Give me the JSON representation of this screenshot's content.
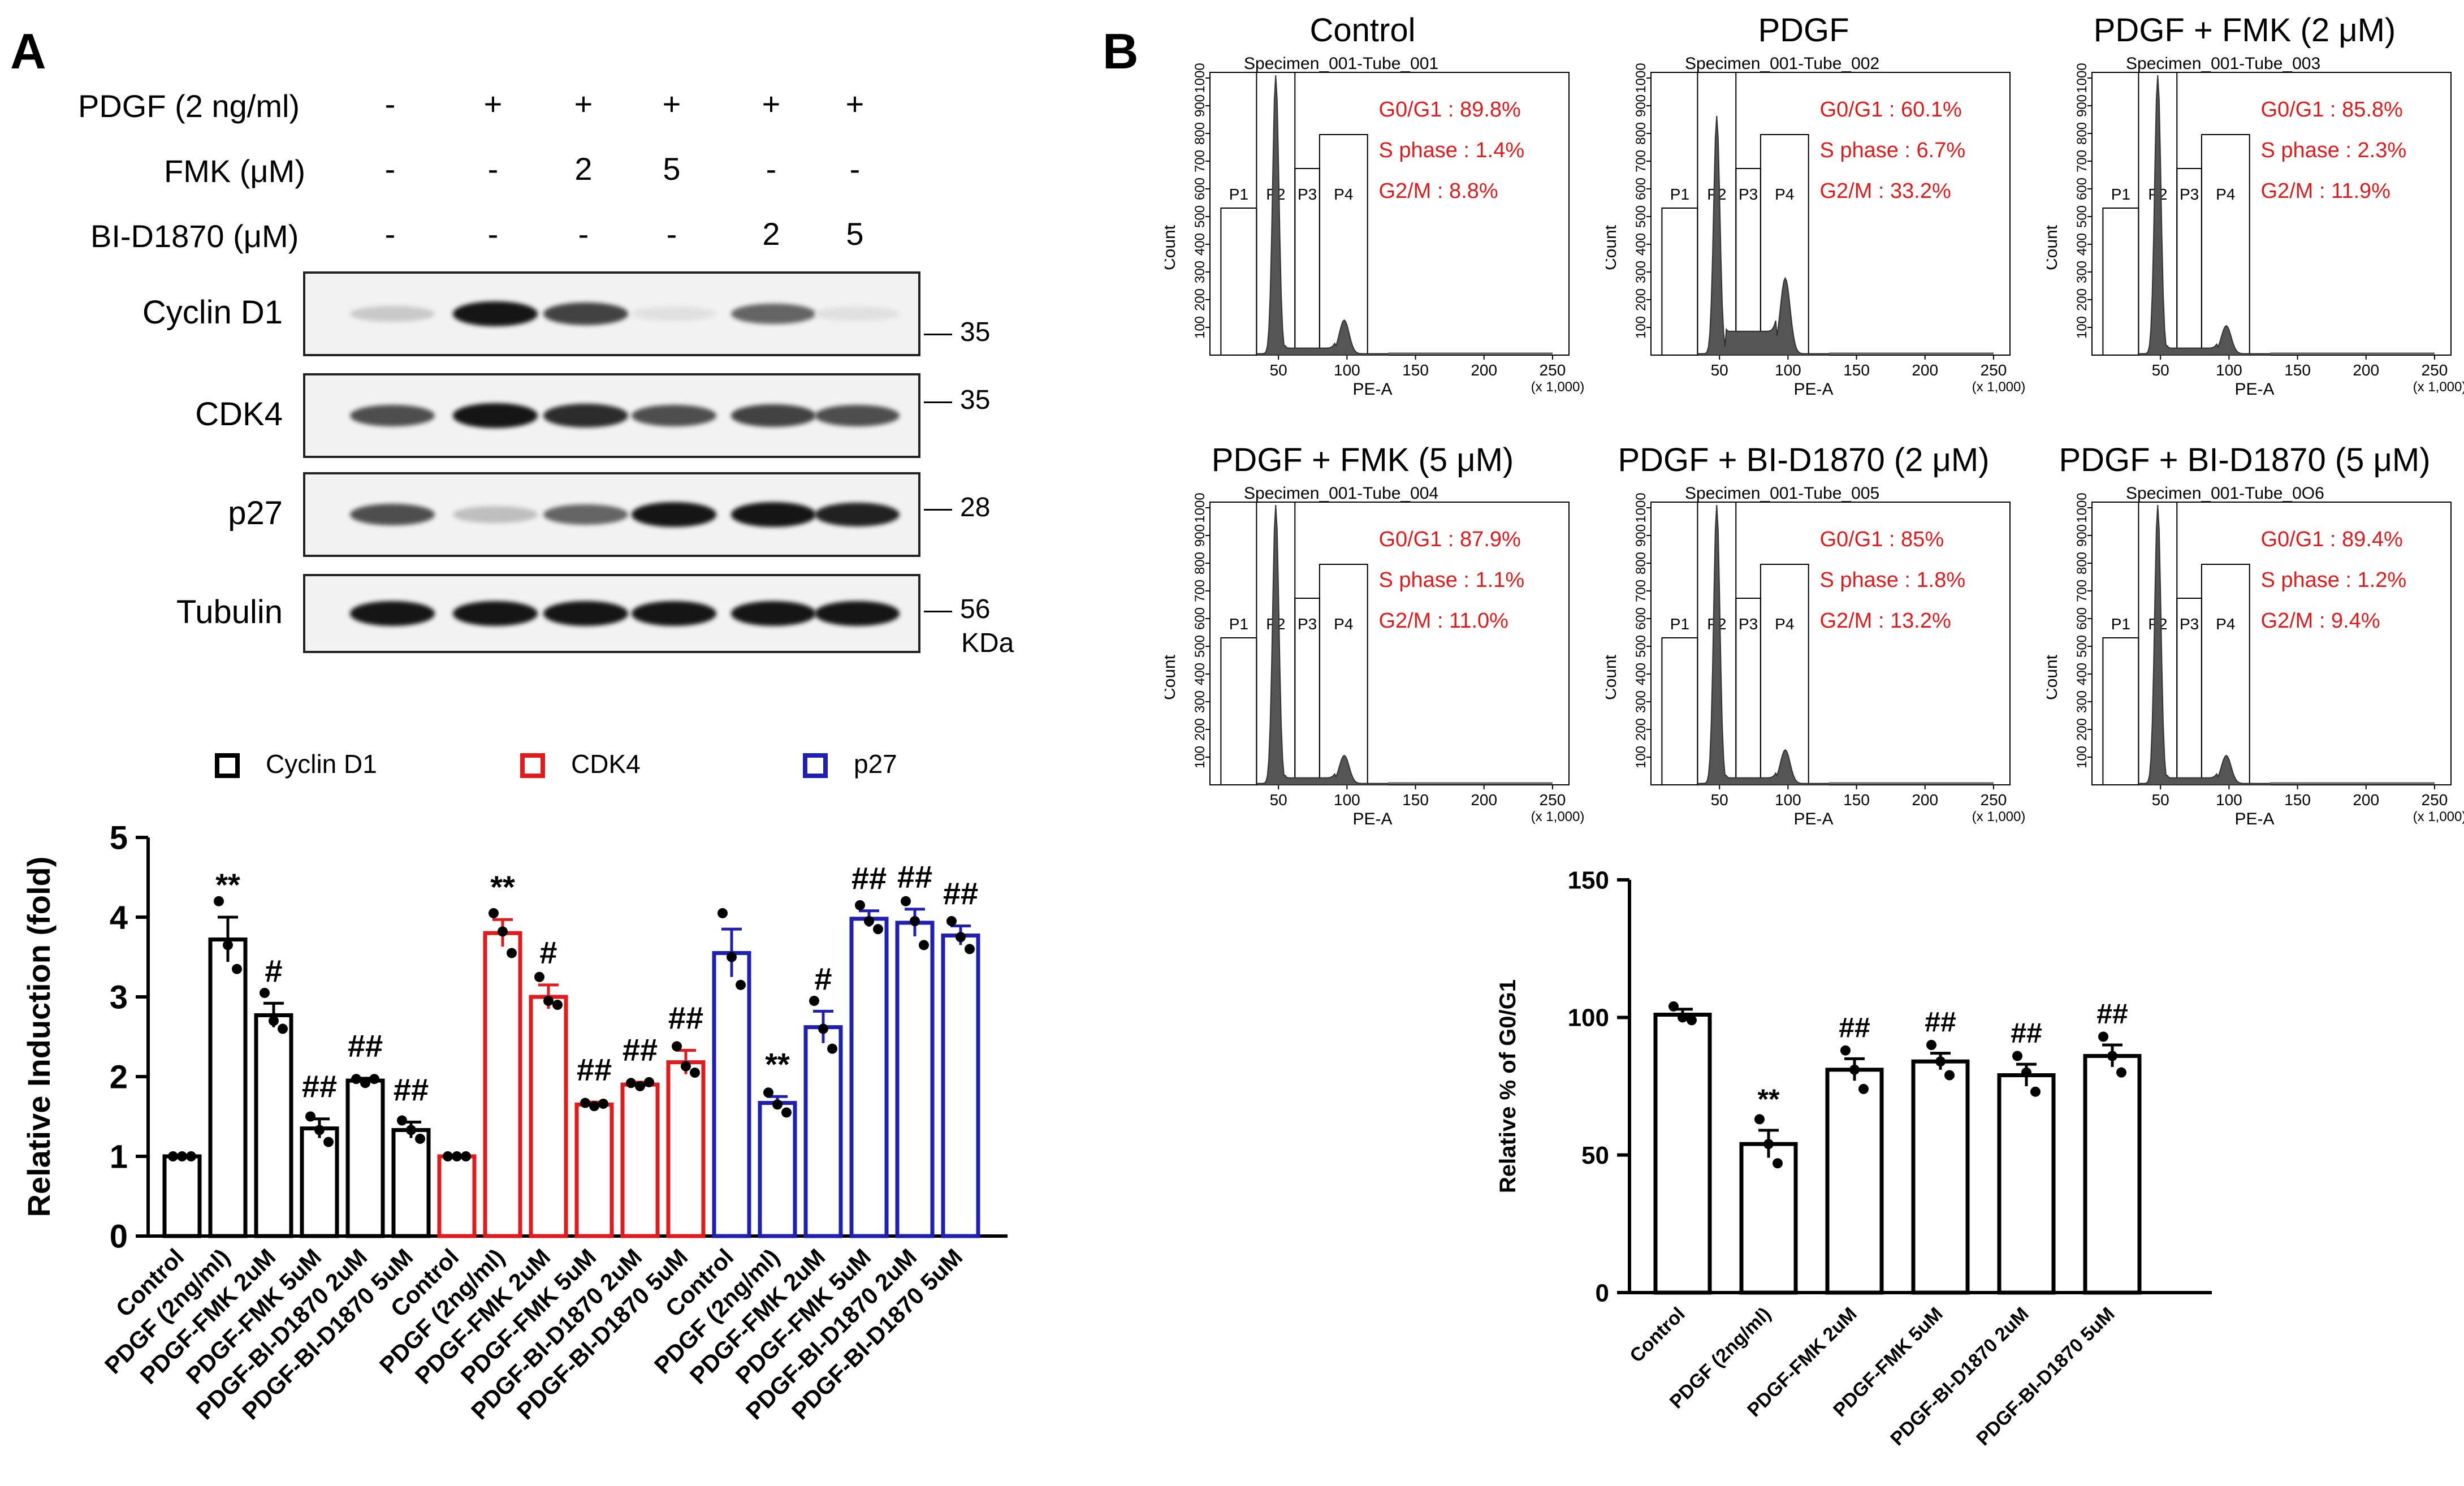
{
  "panel_a": {
    "letter": "A",
    "treatments": [
      {
        "label": "PDGF (2 ng/ml)",
        "values": [
          "-",
          "+",
          "+",
          "+",
          "+",
          "+"
        ]
      },
      {
        "label": "FMK (μM)",
        "values": [
          "-",
          "-",
          "2",
          "5",
          "-",
          "-"
        ]
      },
      {
        "label": "BI-D1870 (μM)",
        "values": [
          "-",
          "-",
          "-",
          "-",
          "2",
          "5"
        ]
      }
    ],
    "blots": [
      {
        "label": "Cyclin D1",
        "intensity": [
          0.15,
          0.95,
          0.75,
          0.05,
          0.6,
          0.05
        ],
        "mw": "35"
      },
      {
        "label": "CDK4",
        "intensity": [
          0.7,
          0.95,
          0.85,
          0.7,
          0.75,
          0.7
        ],
        "mw": "35"
      },
      {
        "label": "p27",
        "intensity": [
          0.7,
          0.2,
          0.6,
          0.95,
          0.95,
          0.9
        ],
        "mw": "28"
      },
      {
        "label": "Tubulin",
        "intensity": [
          0.95,
          0.95,
          0.95,
          0.95,
          0.95,
          0.95
        ],
        "mw": "56"
      }
    ],
    "kda_label": "KDa",
    "legend": [
      {
        "label": "Cyclin D1",
        "color": "#000000"
      },
      {
        "label": "CDK4",
        "color": "#e31a1c"
      },
      {
        "label": "p27",
        "color": "#1f1fb4"
      }
    ]
  },
  "panel_b": {
    "letter": "B",
    "histograms": [
      {
        "title": "Control",
        "specimen": "Specimen_001-Tube_001",
        "g0g1": "G0/G1 : 89.8%",
        "s": "S phase : 1.4%",
        "g2m": "G2/M : 8.8%",
        "g1_height": 1.0,
        "g2_height": 0.12,
        "s_level": 0.02
      },
      {
        "title": "PDGF",
        "specimen": "Specimen_001-Tube_002",
        "g0g1": "G0/G1 : 60.1%",
        "s": "S phase : 6.7%",
        "g2m": "G2/M : 33.2%",
        "g1_height": 0.85,
        "g2_height": 0.27,
        "s_level": 0.08
      },
      {
        "title": "PDGF + FMK (2 μM)",
        "specimen": "Specimen_001-Tube_003",
        "g0g1": "G0/G1 : 85.8%",
        "s": "S phase : 2.3%",
        "g2m": "G2/M : 11.9%",
        "g1_height": 1.0,
        "g2_height": 0.1,
        "s_level": 0.02
      },
      {
        "title": "PDGF + FMK (5 μM)",
        "specimen": "Specimen_001-Tube_004",
        "g0g1": "G0/G1 : 87.9%",
        "s": "S phase : 1.1%",
        "g2m": "G2/M : 11.0%",
        "g1_height": 1.0,
        "g2_height": 0.1,
        "s_level": 0.02
      },
      {
        "title": "PDGF + BI-D1870 (2 μM)",
        "specimen": "Specimen_001-Tube_005",
        "g0g1": "G0/G1 : 85%",
        "s": "S phase : 1.8%",
        "g2m": "G2/M : 13.2%",
        "g1_height": 1.0,
        "g2_height": 0.12,
        "s_level": 0.02
      },
      {
        "title": "PDGF + BI-D1870 (5 μM)",
        "specimen": "Specimen_001-Tube_0O6",
        "g0g1": "G0/G1 : 89.4%",
        "s": "S phase : 1.2%",
        "g2m": "G2/M : 9.4%",
        "g1_height": 1.0,
        "g2_height": 0.1,
        "s_level": 0.02
      }
    ],
    "hist_axis": {
      "xlabel": "PE-A",
      "ylabel": "Count",
      "xticks": [
        "50",
        "100",
        "150",
        "200",
        "250"
      ],
      "xunit": "(x 1,000)",
      "yticks": [
        "100",
        "200",
        "300",
        "400",
        "500",
        "600",
        "700",
        "800",
        "900",
        "1000"
      ],
      "gates": [
        "P1",
        "P2",
        "P3",
        "P4"
      ]
    }
  },
  "chart_data": [
    {
      "type": "bar",
      "title": "",
      "xlabel": "",
      "ylabel": "Relative Induction (fold)",
      "ylim": [
        0,
        5
      ],
      "yticks": [
        0,
        1,
        2,
        3,
        4,
        5
      ],
      "categories": [
        "Control",
        "PDGF (2ng/ml)",
        "PDGF-FMK 2uM",
        "PDGF-FMK 5uM",
        "PDGF-BI-D1870 2uM",
        "PDGF-BI-D1870 5uM"
      ],
      "series": [
        {
          "name": "Cyclin D1",
          "color": "#000000",
          "values": [
            1.0,
            3.72,
            2.77,
            1.35,
            1.95,
            1.33
          ],
          "errors": [
            0.0,
            0.28,
            0.15,
            0.12,
            0.03,
            0.1
          ],
          "points": [
            [
              1.0,
              1.0,
              1.0
            ],
            [
              4.2,
              3.65,
              3.35
            ],
            [
              3.05,
              2.7,
              2.6
            ],
            [
              1.5,
              1.33,
              1.18
            ],
            [
              1.97,
              1.92,
              1.97
            ],
            [
              1.45,
              1.33,
              1.22
            ]
          ],
          "annotations": [
            "",
            "**",
            "#",
            "##",
            "##",
            "##"
          ]
        },
        {
          "name": "CDK4",
          "color": "#e31a1c",
          "values": [
            1.0,
            3.8,
            3.0,
            1.65,
            1.9,
            2.18
          ],
          "errors": [
            0.0,
            0.17,
            0.15,
            0.03,
            0.03,
            0.15
          ],
          "points": [
            [
              1.0,
              1.0,
              1.0
            ],
            [
              4.05,
              3.82,
              3.55
            ],
            [
              3.25,
              2.95,
              2.9
            ],
            [
              1.67,
              1.63,
              1.66
            ],
            [
              1.92,
              1.88,
              1.93
            ],
            [
              2.38,
              2.13,
              2.05
            ]
          ],
          "annotations": [
            "",
            "**",
            "#",
            "##",
            "##",
            "##"
          ]
        },
        {
          "name": "p27",
          "color": "#1f1fb4",
          "values": [
            3.55,
            1.67,
            2.62,
            3.98,
            3.93,
            3.77
          ],
          "errors": [
            0.3,
            0.08,
            0.2,
            0.1,
            0.17,
            0.12
          ],
          "points": [
            [
              4.05,
              3.5,
              3.15
            ],
            [
              1.8,
              1.65,
              1.55
            ],
            [
              2.95,
              2.6,
              2.35
            ],
            [
              4.15,
              3.95,
              3.85
            ],
            [
              4.2,
              3.95,
              3.65
            ],
            [
              3.95,
              3.75,
              3.6
            ]
          ],
          "annotations": [
            "",
            "**",
            "#",
            "##",
            "##",
            "##"
          ]
        }
      ]
    },
    {
      "type": "bar",
      "title": "",
      "xlabel": "",
      "ylabel": "Relative % of G0/G1",
      "ylim": [
        0,
        150
      ],
      "yticks": [
        0,
        50,
        100,
        150
      ],
      "categories": [
        "Control",
        "PDGF (2ng/ml)",
        "PDGF-FMK 2uM",
        "PDGF-FMK 5uM",
        "PDGF-BI-D1870 2uM",
        "PDGF-BI-D1870 5uM"
      ],
      "series": [
        {
          "name": "Relative % of G0/G1",
          "color": "#000000",
          "values": [
            101,
            54,
            81,
            84,
            79,
            86
          ],
          "errors": [
            2,
            5,
            4,
            3,
            4,
            4
          ],
          "points": [
            [
              104,
              100,
              99
            ],
            [
              63,
              54,
              47
            ],
            [
              88,
              81,
              74
            ],
            [
              90,
              84,
              79
            ],
            [
              86,
              80,
              73
            ],
            [
              93,
              86,
              80
            ]
          ],
          "annotations": [
            "",
            "**",
            "##",
            "##",
            "##",
            "##"
          ]
        }
      ]
    }
  ]
}
